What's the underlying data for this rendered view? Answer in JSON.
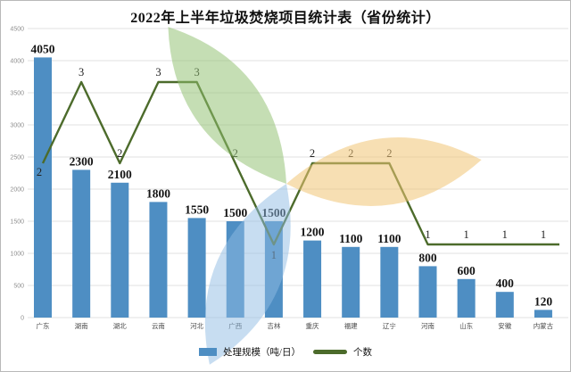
{
  "chart_data": {
    "type": "bar+line",
    "title": "2022年上半年垃圾焚烧项目统计表（省份统计）",
    "categories": [
      "广东",
      "湖南",
      "湖北",
      "云南",
      "河北",
      "广西",
      "吉林",
      "重庆",
      "福建",
      "辽宁",
      "河南",
      "山东",
      "安徽",
      "内蒙古"
    ],
    "series": [
      {
        "name": "处理规模（吨/日）",
        "type": "bar",
        "values": [
          4050,
          2300,
          2100,
          1800,
          1550,
          1500,
          1500,
          1200,
          1100,
          1100,
          800,
          600,
          400,
          120
        ]
      },
      {
        "name": "个数",
        "type": "line",
        "values": [
          2,
          3,
          2,
          3,
          3,
          2,
          1,
          2,
          2,
          2,
          1,
          1,
          1,
          1
        ]
      }
    ],
    "ylim": [
      0,
      4500
    ],
    "ytick_interval": 500,
    "grid": "horizontal",
    "legend_position": "bottom"
  },
  "colors": {
    "bar": "#4E8EC3",
    "line": "#4C6B2B",
    "grid": "#E2E2E2",
    "tick_text": "#8F8F8F",
    "category_text": "#4A4A4A",
    "value_label_text": "#141414",
    "watermark_green": "#8FBF70",
    "watermark_orange": "#F0C475",
    "watermark_blue": "#8FBCE3"
  }
}
